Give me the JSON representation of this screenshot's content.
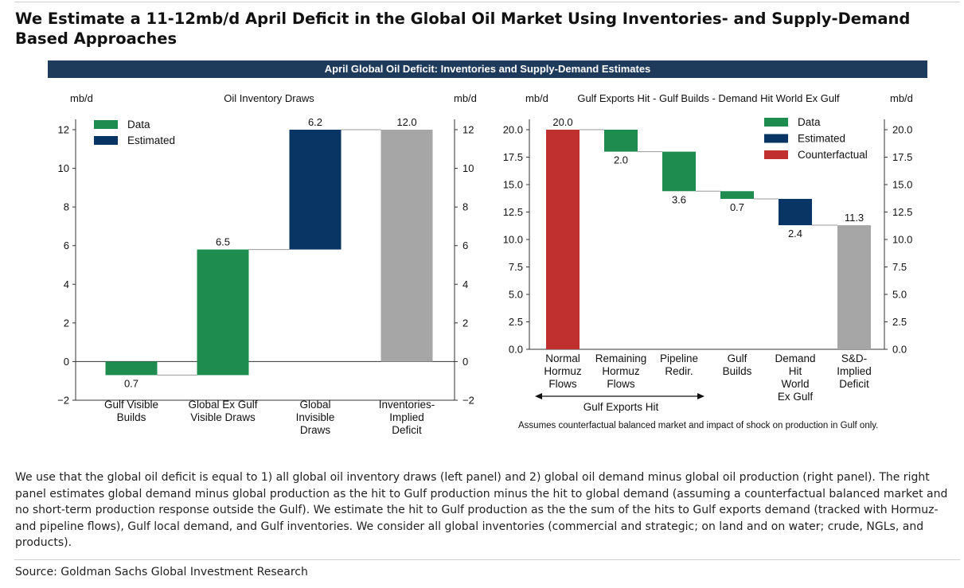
{
  "title": "We Estimate a 11-12mb/d April Deficit in the Global Oil Market Using Inventories- and Supply-Demand Based Approaches",
  "banner": "April Global Oil Deficit: Inventories and Supply-Demand Estimates",
  "body_text": "We use that the global oil deficit is equal to 1) all global oil inventory draws (left panel) and 2) global oil demand minus global oil production (right panel). The right panel estimates global demand minus global production as the hit to Gulf production minus the hit to global demand (assuming a counterfactual balanced market and no short-term production response outside the Gulf). We estimate the hit to Gulf production as the the sum of the hits to Gulf exports demand (tracked with Hormuz- and pipeline flows), Gulf local demand, and Gulf inventories. We consider all global inventories (commercial and strategic; on land and on water; crude, NGLs, and products).",
  "source": "Source: Goldman Sachs Global Investment Research",
  "colors": {
    "data": "#1e8c4e",
    "estimated": "#083563",
    "counterfactual": "#c0302f",
    "total": "#a6a6a6",
    "connector": "#999999"
  },
  "chart_data": [
    {
      "type": "bar",
      "subtype": "waterfall",
      "title": "Oil Inventory Draws",
      "ylabel_left": "mb/d",
      "ylabel_right": "mb/d",
      "ylim": [
        -2,
        12.8
      ],
      "yticks": [
        -2,
        0,
        2,
        4,
        6,
        8,
        10,
        12
      ],
      "ytick_labels": [
        "−2",
        "0",
        "2",
        "4",
        "6",
        "8",
        "10",
        "12"
      ],
      "legend": {
        "position": "top-left",
        "entries": [
          {
            "label": "Data",
            "kind": "data"
          },
          {
            "label": "Estimated",
            "kind": "estimated"
          }
        ]
      },
      "categories": [
        [
          "Gulf Visible",
          "Builds"
        ],
        [
          "Global Ex Gulf",
          "Visible Draws"
        ],
        [
          "Global",
          "Invisible",
          "Draws"
        ],
        [
          "Inventories-",
          "Implied",
          "Deficit"
        ]
      ],
      "bars": [
        {
          "start": 0,
          "end": -0.7,
          "label": "0.7",
          "label_pos": "below",
          "kind": "data"
        },
        {
          "start": -0.7,
          "end": 5.8,
          "label": "6.5",
          "label_pos": "above",
          "kind": "data"
        },
        {
          "start": 5.8,
          "end": 12.0,
          "label": "6.2",
          "label_pos": "above",
          "kind": "estimated"
        },
        {
          "start": 0,
          "end": 12.0,
          "label": "12.0",
          "label_pos": "above",
          "kind": "total"
        }
      ]
    },
    {
      "type": "bar",
      "subtype": "waterfall",
      "title": "Gulf Exports Hit - Gulf Builds - Demand Hit World Ex Gulf",
      "ylabel_left": "mb/d",
      "ylabel_right": "mb/d",
      "ylim": [
        0,
        21.5
      ],
      "yticks": [
        0,
        2.5,
        5,
        7.5,
        10,
        12.5,
        15,
        17.5,
        20
      ],
      "ytick_labels": [
        "0.0",
        "2.5",
        "5.0",
        "7.5",
        "10.0",
        "12.5",
        "15.0",
        "17.5",
        "20.0"
      ],
      "legend": {
        "position": "top-right",
        "entries": [
          {
            "label": "Data",
            "kind": "data"
          },
          {
            "label": "Estimated",
            "kind": "estimated"
          },
          {
            "label": "Counterfactual",
            "kind": "counterfactual"
          }
        ]
      },
      "categories": [
        [
          "Normal",
          "Hormuz",
          "Flows"
        ],
        [
          "Remaining",
          "Hormuz",
          "Flows"
        ],
        [
          "Pipeline",
          "Redir."
        ],
        [
          "Gulf",
          "Builds"
        ],
        [
          "Demand",
          "Hit",
          "World",
          "Ex Gulf"
        ],
        [
          "S&D-",
          "Implied",
          "Deficit"
        ]
      ],
      "bars": [
        {
          "start": 0,
          "end": 20.0,
          "label": "20.0",
          "label_pos": "above",
          "kind": "counterfactual"
        },
        {
          "start": 20.0,
          "end": 18.0,
          "label": "2.0",
          "label_pos": "below",
          "kind": "data"
        },
        {
          "start": 18.0,
          "end": 14.4,
          "label": "3.6",
          "label_pos": "below",
          "kind": "data"
        },
        {
          "start": 14.4,
          "end": 13.7,
          "label": "0.7",
          "label_pos": "below",
          "kind": "data"
        },
        {
          "start": 13.7,
          "end": 11.3,
          "label": "2.4",
          "label_pos": "below",
          "kind": "estimated"
        },
        {
          "start": 0,
          "end": 11.3,
          "label": "11.3",
          "label_pos": "above",
          "kind": "total"
        }
      ],
      "bracket_label": "Gulf Exports Hit",
      "footnote": "Assumes counterfactual balanced market and impact of shock on production in Gulf only."
    }
  ]
}
